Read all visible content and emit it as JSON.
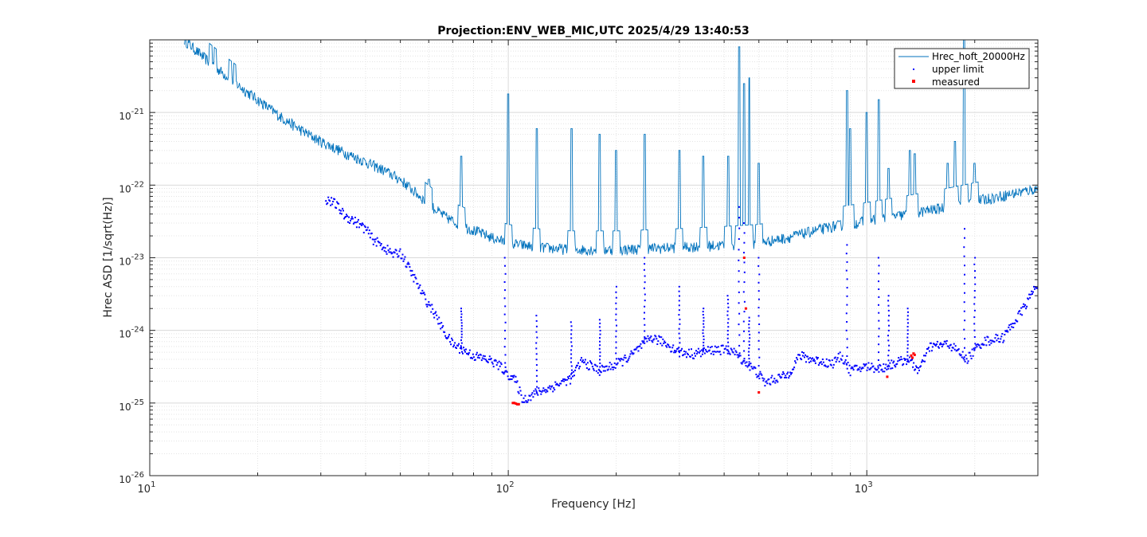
{
  "chart_data": {
    "type": "scatter",
    "title": "Projection:ENV_WEB_MIC,UTC 2025/4/29 13:40:53",
    "xlabel": "Frequency [Hz]",
    "ylabel": "Hrec ASD [1/sqrt(Hz)]",
    "xscale": "log",
    "yscale": "log",
    "xlim": [
      10,
      3000
    ],
    "ylim": [
      1e-26,
      1e-20
    ],
    "grid": true,
    "minor_grid": true,
    "legend_position": "top-right",
    "x_ticks": [
      {
        "value": 10,
        "base": "10",
        "exp": "1"
      },
      {
        "value": 100,
        "base": "10",
        "exp": "2"
      },
      {
        "value": 1000,
        "base": "10",
        "exp": "3"
      }
    ],
    "y_ticks": [
      {
        "value": 1e-26,
        "base": "10",
        "exp": "-26"
      },
      {
        "value": 1e-25,
        "base": "10",
        "exp": "-25"
      },
      {
        "value": 1e-24,
        "base": "10",
        "exp": "-24"
      },
      {
        "value": 1e-23,
        "base": "10",
        "exp": "-23"
      },
      {
        "value": 1e-22,
        "base": "10",
        "exp": "-22"
      },
      {
        "value": 1e-21,
        "base": "10",
        "exp": "-21"
      }
    ],
    "series": [
      {
        "name": "Hrec_hoft_20000Hz",
        "style": "line",
        "color": "#0072bd",
        "baseline": [
          [
            12.5,
            1e-20
          ],
          [
            14,
            6e-21
          ],
          [
            16,
            3.5e-21
          ],
          [
            18,
            2.2e-21
          ],
          [
            20,
            1.5e-21
          ],
          [
            23,
            9e-22
          ],
          [
            26,
            6e-22
          ],
          [
            30,
            4e-22
          ],
          [
            35,
            2.8e-22
          ],
          [
            40,
            2.1e-22
          ],
          [
            45,
            1.6e-22
          ],
          [
            50,
            1.2e-22
          ],
          [
            55,
            8e-23
          ],
          [
            60,
            5.5e-23
          ],
          [
            65,
            4e-23
          ],
          [
            70,
            3.2e-23
          ],
          [
            80,
            2.4e-23
          ],
          [
            90,
            1.9e-23
          ],
          [
            100,
            1.6e-23
          ],
          [
            120,
            1.4e-23
          ],
          [
            150,
            1.3e-23
          ],
          [
            200,
            1.3e-23
          ],
          [
            250,
            1.35e-23
          ],
          [
            300,
            1.4e-23
          ],
          [
            400,
            1.5e-23
          ],
          [
            500,
            1.6e-23
          ],
          [
            600,
            1.9e-23
          ],
          [
            700,
            2.3e-23
          ],
          [
            800,
            2.7e-23
          ],
          [
            1000,
            3.2e-23
          ],
          [
            1300,
            4e-23
          ],
          [
            1600,
            4.8e-23
          ],
          [
            2000,
            6e-23
          ],
          [
            2500,
            7.5e-23
          ],
          [
            3000,
            9e-23
          ]
        ],
        "peaks": [
          [
            15,
            4e-21
          ],
          [
            17,
            1.8e-21
          ],
          [
            60,
            1.2e-22
          ],
          [
            74,
            2.5e-22
          ],
          [
            100,
            1.8e-21
          ],
          [
            120,
            6e-22
          ],
          [
            150,
            6e-22
          ],
          [
            180,
            5e-22
          ],
          [
            200,
            3e-22
          ],
          [
            240,
            5e-22
          ],
          [
            300,
            3e-22
          ],
          [
            350,
            2.5e-22
          ],
          [
            410,
            2.5e-22
          ],
          [
            440,
            8e-21
          ],
          [
            455,
            2.5e-21
          ],
          [
            470,
            3e-21
          ],
          [
            500,
            2e-22
          ],
          [
            880,
            2e-21
          ],
          [
            900,
            6e-22
          ],
          [
            1000,
            1e-21
          ],
          [
            1080,
            1.5e-21
          ],
          [
            1150,
            1.7e-22
          ],
          [
            1320,
            3e-22
          ],
          [
            1360,
            2.7e-22
          ],
          [
            1680,
            2e-22
          ],
          [
            1760,
            4e-22
          ],
          [
            1870,
            1e-20
          ],
          [
            2000,
            2e-22
          ]
        ]
      },
      {
        "name": "upper limit",
        "style": "dots",
        "color": "#0000ff",
        "baseline": [
          [
            31,
            6.5e-23
          ],
          [
            33,
            5.5e-23
          ],
          [
            35,
            3.8e-23
          ],
          [
            37,
            3.3e-23
          ],
          [
            40,
            2.5e-23
          ],
          [
            42,
            1.8e-23
          ],
          [
            45,
            1.4e-23
          ],
          [
            48,
            1.1e-23
          ],
          [
            50,
            1.2e-23
          ],
          [
            55,
            5e-24
          ],
          [
            58,
            3e-24
          ],
          [
            62,
            1.8e-24
          ],
          [
            66,
            1e-24
          ],
          [
            70,
            6.5e-25
          ],
          [
            80,
            4.5e-25
          ],
          [
            90,
            3.8e-25
          ],
          [
            95,
            3.2e-25
          ],
          [
            100,
            2.5e-25
          ],
          [
            105,
            2e-25
          ],
          [
            110,
            1.1e-25
          ],
          [
            120,
            1.4e-25
          ],
          [
            130,
            1.6e-25
          ],
          [
            150,
            2.2e-25
          ],
          [
            160,
            3.8e-25
          ],
          [
            180,
            2.8e-25
          ],
          [
            200,
            3.4e-25
          ],
          [
            220,
            4.5e-25
          ],
          [
            250,
            8e-25
          ],
          [
            270,
            7e-25
          ],
          [
            300,
            5e-25
          ],
          [
            330,
            4.8e-25
          ],
          [
            380,
            5.5e-25
          ],
          [
            420,
            5.3e-25
          ],
          [
            450,
            4e-25
          ],
          [
            500,
            2.5e-25
          ],
          [
            520,
            1.9e-25
          ],
          [
            560,
            2.2e-25
          ],
          [
            600,
            2.4e-25
          ],
          [
            650,
            4.5e-25
          ],
          [
            700,
            4e-25
          ],
          [
            800,
            3.5e-25
          ],
          [
            850,
            4.5e-25
          ],
          [
            900,
            2.8e-25
          ],
          [
            1000,
            3.2e-25
          ],
          [
            1100,
            3e-25
          ],
          [
            1200,
            3.6e-25
          ],
          [
            1300,
            4e-25
          ],
          [
            1400,
            2.8e-25
          ],
          [
            1500,
            6e-25
          ],
          [
            1700,
            6.5e-25
          ],
          [
            1900,
            4e-25
          ],
          [
            2100,
            7e-25
          ],
          [
            2400,
            8e-25
          ],
          [
            2700,
            1.8e-24
          ],
          [
            3000,
            4.5e-24
          ]
        ],
        "spikes": [
          [
            74,
            2e-24
          ],
          [
            98,
            1e-23
          ],
          [
            120,
            1.6e-24
          ],
          [
            150,
            1.3e-24
          ],
          [
            180,
            1.4e-24
          ],
          [
            200,
            4e-24
          ],
          [
            240,
            1e-23
          ],
          [
            300,
            4e-24
          ],
          [
            350,
            2e-24
          ],
          [
            410,
            3e-24
          ],
          [
            440,
            5e-23
          ],
          [
            455,
            3e-23
          ],
          [
            470,
            1.5e-24
          ],
          [
            500,
            1e-23
          ],
          [
            880,
            1.5e-23
          ],
          [
            1080,
            1e-23
          ],
          [
            1150,
            3e-24
          ],
          [
            1300,
            2e-24
          ],
          [
            1870,
            2.5e-23
          ],
          [
            2000,
            1e-23
          ]
        ]
      },
      {
        "name": "measured",
        "style": "squares",
        "color": "#ff0000",
        "points": [
          [
            103,
            1e-25
          ],
          [
            104,
            1e-25
          ],
          [
            105,
            9.8e-26
          ],
          [
            106,
            9.6e-26
          ],
          [
            107,
            9.6e-26
          ],
          [
            455,
            1e-23
          ],
          [
            460,
            2e-24
          ],
          [
            500,
            1.4e-25
          ],
          [
            1140,
            2.3e-25
          ],
          [
            1330,
            4.5e-25
          ],
          [
            1340,
            4.2e-25
          ],
          [
            1350,
            4.8e-25
          ],
          [
            1360,
            4.6e-25
          ]
        ]
      }
    ]
  }
}
